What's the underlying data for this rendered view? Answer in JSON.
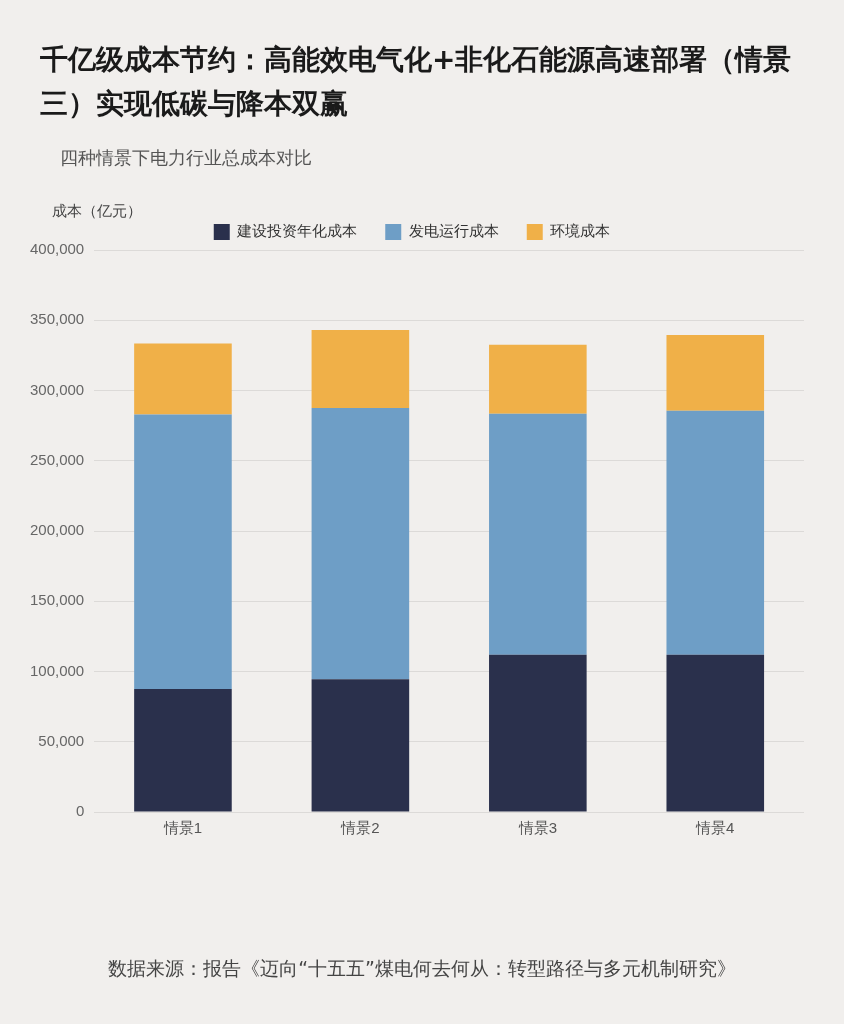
{
  "chart_data": {
    "type": "bar",
    "title": "千亿级成本节约：高能效电气化+非化石能源高速部署（情景三）实现低碳与降本双赢",
    "subtitle": "四种情景下电力行业总成本对比",
    "ylabel": "成本（亿元）",
    "categories": [
      "情景1",
      "情景2",
      "情景3",
      "情景4"
    ],
    "stacked": true,
    "series": [
      {
        "name": "建设投资年化成本",
        "color": "#2a304c",
        "values": [
          87500,
          94500,
          112000,
          112000
        ]
      },
      {
        "name": "发电运行成本",
        "color": "#6e9ec6",
        "values": [
          195500,
          193000,
          171500,
          173500
        ]
      },
      {
        "name": "环境成本",
        "color": "#f0b048",
        "values": [
          50500,
          55500,
          49000,
          54000
        ]
      }
    ],
    "ylim": [
      0,
      400000
    ],
    "yticks": [
      0,
      {
        "value": 50000,
        "label": "50,000"
      },
      {
        "value": 100000,
        "label": "100,000"
      },
      {
        "value": 150000,
        "label": "150,000"
      },
      {
        "value": 200000,
        "label": "200,000"
      },
      {
        "value": 250000,
        "label": "250,000"
      },
      {
        "value": 300000,
        "label": "300,000"
      },
      {
        "value": 350000,
        "label": "350,000"
      },
      {
        "value": 400000,
        "label": "400,000"
      }
    ],
    "grid": "y",
    "legend": "top",
    "annotations": [
      "数据来源：报告《迈向“十五五”煤电何去何从：转型路径与多元机制研究》"
    ]
  }
}
